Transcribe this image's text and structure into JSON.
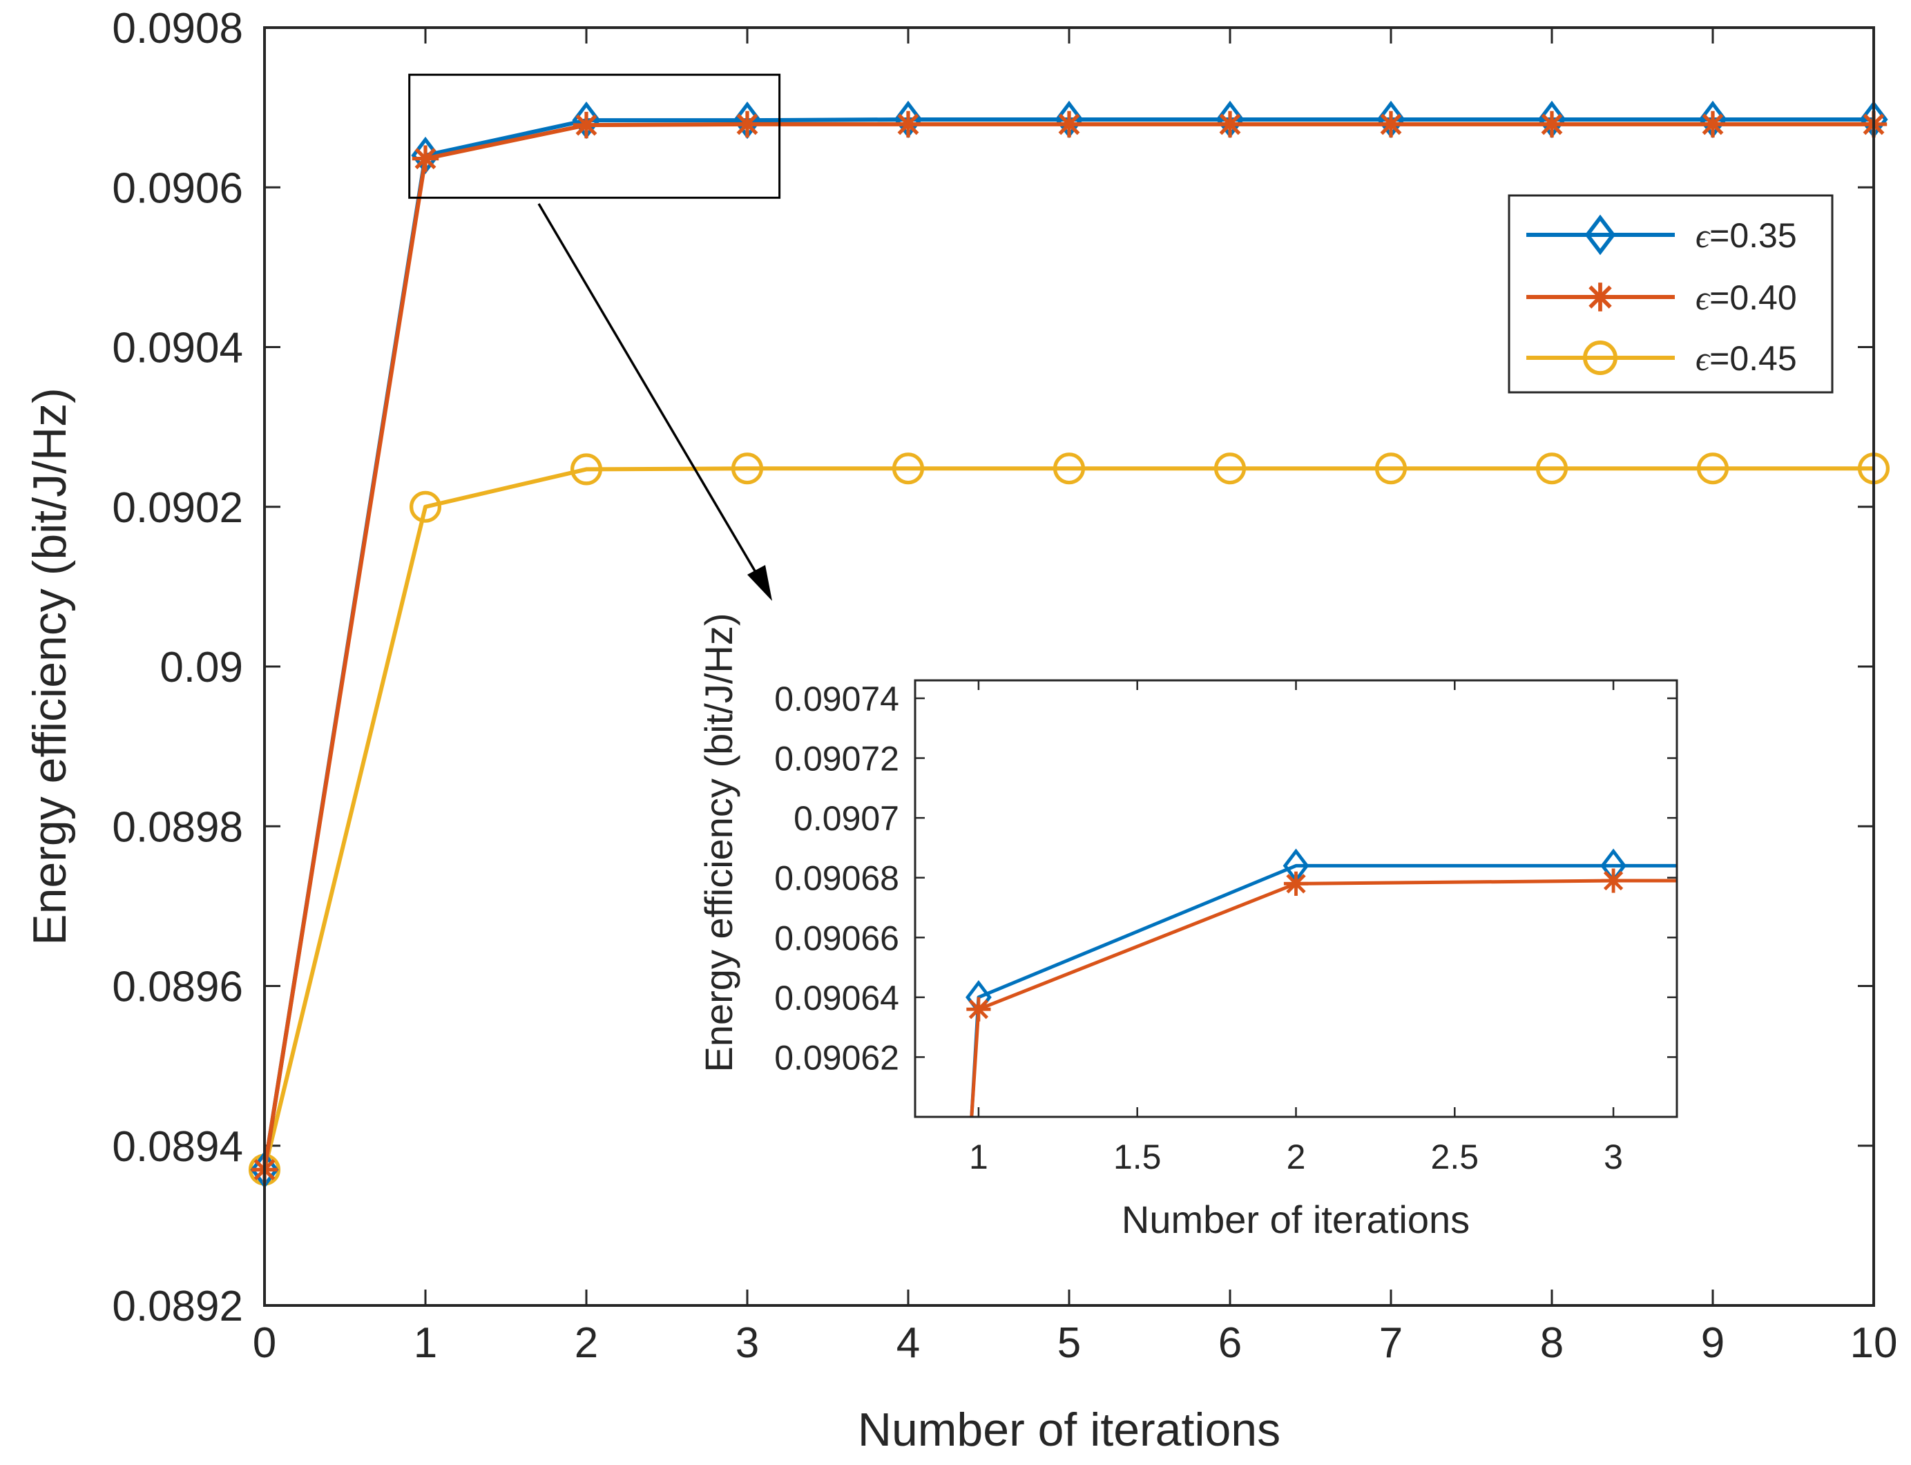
{
  "chart_data": [
    {
      "id": "main",
      "type": "line",
      "xlabel": "Number of iterations",
      "ylabel": "Energy efficiency (bit/J/Hz)",
      "xlim": [
        0,
        10
      ],
      "ylim": [
        0.0892,
        0.0908
      ],
      "xticks": [
        0,
        1,
        2,
        3,
        4,
        5,
        6,
        7,
        8,
        9,
        10
      ],
      "xtick_labels": [
        "0",
        "1",
        "2",
        "3",
        "4",
        "5",
        "6",
        "7",
        "8",
        "9",
        "10"
      ],
      "yticks": [
        0.0892,
        0.0894,
        0.0896,
        0.0898,
        0.09,
        0.0902,
        0.0904,
        0.0906,
        0.0908
      ],
      "ytick_labels": [
        "0.0892",
        "0.0894",
        "0.0896",
        "0.0898",
        "0.09",
        "0.0902",
        "0.0904",
        "0.0906",
        "0.0908"
      ],
      "legend_location": "upper-right",
      "x": [
        0,
        1,
        2,
        3,
        4,
        5,
        6,
        7,
        8,
        9,
        10
      ],
      "series": [
        {
          "name": "ϵ=0.35",
          "eps_symbol": "ϵ",
          "eps_value": "=0.35",
          "color": "#0072BD",
          "marker": "diamond",
          "values": [
            0.08937,
            0.09064,
            0.090684,
            0.090684,
            0.090685,
            0.090685,
            0.090685,
            0.090685,
            0.090685,
            0.090685,
            0.090685
          ]
        },
        {
          "name": "ϵ=0.40",
          "eps_symbol": "ϵ",
          "eps_value": "=0.40",
          "color": "#D95319",
          "marker": "asterisk",
          "values": [
            0.08937,
            0.090636,
            0.090678,
            0.090679,
            0.090679,
            0.090679,
            0.090679,
            0.090679,
            0.090679,
            0.090679,
            0.090679
          ]
        },
        {
          "name": "ϵ=0.45",
          "eps_symbol": "ϵ",
          "eps_value": "=0.45",
          "color": "#EDB120",
          "marker": "circle",
          "values": [
            0.08937,
            0.0902,
            0.090247,
            0.090248,
            0.090248,
            0.090248,
            0.090248,
            0.090248,
            0.090248,
            0.090248,
            0.090248
          ]
        }
      ],
      "zoom_box": {
        "xlim": [
          0.9,
          3.2
        ],
        "ylim": [
          0.090587,
          0.090741
        ]
      }
    },
    {
      "id": "inset",
      "type": "line",
      "xlabel": "Number of iterations",
      "ylabel": "Energy efficiency (bit/J/Hz)",
      "xlim": [
        0.8,
        3.2
      ],
      "ylim": [
        0.0906,
        0.090746
      ],
      "xticks": [
        1,
        1.5,
        2,
        2.5,
        3
      ],
      "xtick_labels": [
        "1",
        "1.5",
        "2",
        "2.5",
        "3"
      ],
      "yticks": [
        0.09062,
        0.09064,
        0.09066,
        0.09068,
        0.0907,
        0.09072,
        0.09074
      ],
      "ytick_labels": [
        "0.09062",
        "0.09064",
        "0.09066",
        "0.09068",
        "0.0907",
        "0.09072",
        "0.09074"
      ],
      "series": [
        {
          "name": "ϵ=0.35",
          "color": "#0072BD",
          "marker": "diamond",
          "x": [
            0.978,
            1,
            2,
            3,
            3.2
          ],
          "values": [
            0.0906,
            0.09064,
            0.090684,
            0.090684,
            0.090684
          ],
          "marker_x": [
            1,
            2,
            3
          ]
        },
        {
          "name": "ϵ=0.40",
          "color": "#D95319",
          "marker": "asterisk",
          "x": [
            0.978,
            1,
            2,
            3,
            3.2
          ],
          "values": [
            0.0906,
            0.090636,
            0.090678,
            0.090679,
            0.090679
          ],
          "marker_x": [
            1,
            2,
            3
          ]
        }
      ]
    }
  ]
}
